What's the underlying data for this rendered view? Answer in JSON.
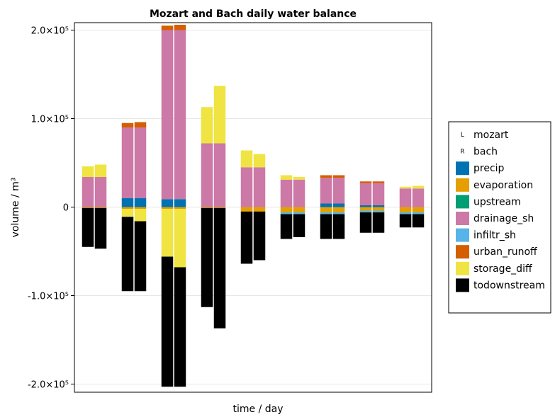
{
  "chart_data": {
    "type": "bar",
    "title": "Mozart and Bach daily water balance",
    "xlabel": "time / day",
    "ylabel": "volume / m³",
    "ylim": [
      -210000,
      210000
    ],
    "yticks": [
      {
        "value": 200000,
        "label": "2.0×10⁵"
      },
      {
        "value": 100000,
        "label": "1.0×10⁵"
      },
      {
        "value": 0,
        "label": "0"
      },
      {
        "value": -100000,
        "label": "-1.0×10⁵"
      },
      {
        "value": -200000,
        "label": "-2.0×10⁵"
      }
    ],
    "grid": true,
    "legend_position": "right",
    "legend": [
      {
        "key": "mozart",
        "label": "mozart",
        "marker": "L"
      },
      {
        "key": "bach",
        "label": "bach",
        "marker": "R"
      },
      {
        "key": "precip",
        "label": "precip",
        "color": "#0072B2"
      },
      {
        "key": "evaporation",
        "label": "evaporation",
        "color": "#E69F00"
      },
      {
        "key": "upstream",
        "label": "upstream",
        "color": "#009E73"
      },
      {
        "key": "drainage_sh",
        "label": "drainage_sh",
        "color": "#CC79A7"
      },
      {
        "key": "infiltr_sh",
        "label": "infiltr_sh",
        "color": "#56B4E9"
      },
      {
        "key": "urban_runoff",
        "label": "urban_runoff",
        "color": "#D55E00"
      },
      {
        "key": "storage_diff",
        "label": "storage_diff",
        "color": "#F0E442"
      },
      {
        "key": "todownstream",
        "label": "todownstream",
        "color": "#000000"
      }
    ],
    "models": [
      "mozart",
      "bach"
    ],
    "days": [
      {
        "mozart": {
          "precip": 0,
          "evaporation": -1000,
          "upstream": 0,
          "drainage_sh": 34000,
          "infiltr_sh": 0,
          "urban_runoff": 0,
          "storage_diff": 12000,
          "todownstream": -44000
        },
        "bach": {
          "precip": 0,
          "evaporation": -1000,
          "upstream": 0,
          "drainage_sh": 34000,
          "infiltr_sh": 0,
          "urban_runoff": 0,
          "storage_diff": 14000,
          "todownstream": -46000
        }
      },
      {
        "mozart": {
          "precip": 10000,
          "evaporation": -2000,
          "upstream": 0,
          "drainage_sh": 80000,
          "infiltr_sh": 0,
          "urban_runoff": 5000,
          "storage_diff": -9000,
          "todownstream": -84000
        },
        "bach": {
          "precip": 10000,
          "evaporation": -2000,
          "upstream": 0,
          "drainage_sh": 80000,
          "infiltr_sh": 0,
          "urban_runoff": 6000,
          "storage_diff": -14000,
          "todownstream": -79000
        }
      },
      {
        "mozart": {
          "precip": 9000,
          "evaporation": -2000,
          "upstream": 0,
          "drainage_sh": 191000,
          "infiltr_sh": 0,
          "urban_runoff": 5000,
          "storage_diff": -54000,
          "todownstream": -147000
        },
        "bach": {
          "precip": 9000,
          "evaporation": -2000,
          "upstream": 0,
          "drainage_sh": 191000,
          "infiltr_sh": 0,
          "urban_runoff": 6000,
          "storage_diff": -66000,
          "todownstream": -135000
        }
      },
      {
        "mozart": {
          "precip": 0,
          "evaporation": -1000,
          "upstream": 0,
          "drainage_sh": 72000,
          "infiltr_sh": 0,
          "urban_runoff": 0,
          "storage_diff": 41000,
          "todownstream": -112000
        },
        "bach": {
          "precip": 0,
          "evaporation": -1000,
          "upstream": 0,
          "drainage_sh": 72000,
          "infiltr_sh": 0,
          "urban_runoff": 0,
          "storage_diff": 65000,
          "todownstream": -136000
        }
      },
      {
        "mozart": {
          "precip": 0,
          "evaporation": -5000,
          "upstream": 0,
          "drainage_sh": 45000,
          "infiltr_sh": 0,
          "urban_runoff": 0,
          "storage_diff": 19000,
          "todownstream": -59000
        },
        "bach": {
          "precip": 0,
          "evaporation": -5000,
          "upstream": 0,
          "drainage_sh": 45000,
          "infiltr_sh": 0,
          "urban_runoff": 0,
          "storage_diff": 15000,
          "todownstream": -55000
        }
      },
      {
        "mozart": {
          "precip": 0,
          "evaporation": -6000,
          "upstream": 0,
          "drainage_sh": 31000,
          "infiltr_sh": -2000,
          "urban_runoff": 0,
          "storage_diff": 5000,
          "todownstream": -28000
        },
        "bach": {
          "precip": 0,
          "evaporation": -6000,
          "upstream": 0,
          "drainage_sh": 31000,
          "infiltr_sh": -2000,
          "urban_runoff": 0,
          "storage_diff": 3000,
          "todownstream": -26000
        }
      },
      {
        "mozart": {
          "precip": 4000,
          "evaporation": -6000,
          "upstream": 0,
          "drainage_sh": 29000,
          "infiltr_sh": -2000,
          "urban_runoff": 3000,
          "storage_diff": 0,
          "todownstream": -28000
        },
        "bach": {
          "precip": 4000,
          "evaporation": -6000,
          "upstream": 0,
          "drainage_sh": 29000,
          "infiltr_sh": -2000,
          "urban_runoff": 3000,
          "storage_diff": 0,
          "todownstream": -28000
        }
      },
      {
        "mozart": {
          "precip": 2000,
          "evaporation": -4000,
          "upstream": 0,
          "drainage_sh": 25000,
          "infiltr_sh": -2000,
          "urban_runoff": 2000,
          "storage_diff": 0,
          "todownstream": -23000
        },
        "bach": {
          "precip": 2000,
          "evaporation": -4000,
          "upstream": 0,
          "drainage_sh": 25000,
          "infiltr_sh": -2000,
          "urban_runoff": 2000,
          "storage_diff": 0,
          "todownstream": -23000
        }
      },
      {
        "mozart": {
          "precip": 0,
          "evaporation": -6000,
          "upstream": 0,
          "drainage_sh": 21000,
          "infiltr_sh": -2000,
          "urban_runoff": 0,
          "storage_diff": 2000,
          "todownstream": -15000
        },
        "bach": {
          "precip": 0,
          "evaporation": -6000,
          "upstream": 0,
          "drainage_sh": 21000,
          "infiltr_sh": -2000,
          "urban_runoff": 0,
          "storage_diff": 3000,
          "todownstream": -15000
        }
      }
    ]
  }
}
